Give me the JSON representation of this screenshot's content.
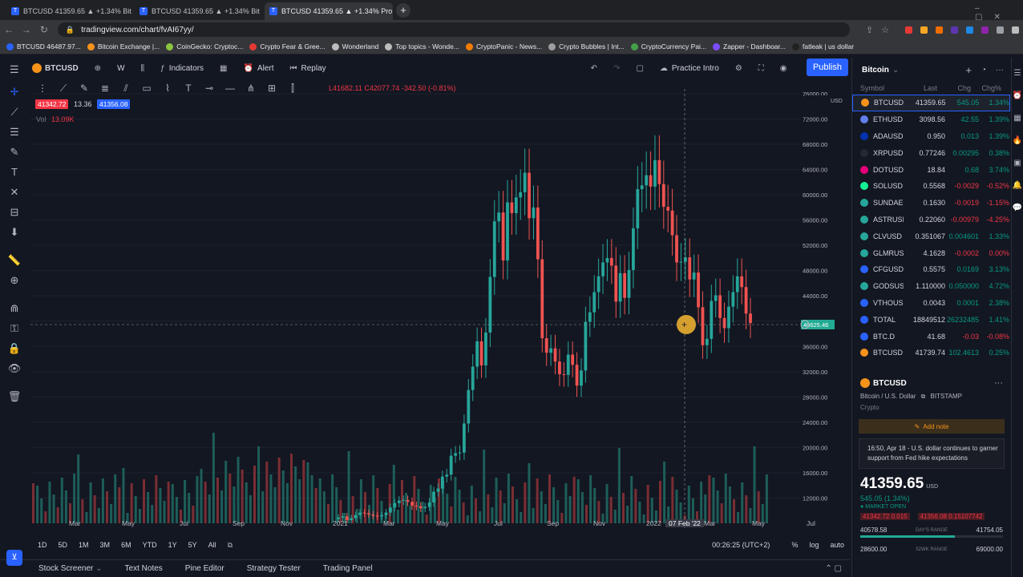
{
  "browser": {
    "tabs": [
      {
        "title": "BTCUSD 41359.65 ▲ +1.34% Bit"
      },
      {
        "title": "BTCUSD 41359.65 ▲ +1.34% Bit"
      },
      {
        "title": "BTCUSD 41359.65 ▲ +1.34% Pro"
      }
    ],
    "url": "tradingview.com/chart/fvAI67yy/",
    "bookmarks": [
      "BTCUSD 46487.97...",
      "Bitcoin Exchange |...",
      "CoinGecko: Cryptoc...",
      "Crypto Fear & Gree...",
      "Wonderland",
      "Top topics - Wonde...",
      "CryptoPanic - News...",
      "Crypto Bubbles | Int...",
      "CryptoCurrency Pai...",
      "Zapper - Dashboar...",
      "fatleak | us dollar"
    ]
  },
  "toolbar": {
    "symbol": "BTCUSD",
    "interval": "W",
    "indicators": "Indicators",
    "alert": "Alert",
    "replay": "Replay",
    "practice": "Practice Intro",
    "publish": "Publish"
  },
  "legend": {
    "ohlc": "L41682.11 C42077.74 -342.50 (-0.81%)",
    "bid": "41342.72",
    "spread": "13.36",
    "ask": "41356.08",
    "vol_label": "Vol",
    "vol_value": "13.09K"
  },
  "chart_data": {
    "type": "candlestick",
    "symbol": "BTCUSD",
    "interval": "W",
    "ylim": [
      8000,
      76000
    ],
    "y_ticks": [
      "76000.00",
      "72000.00",
      "68000.00",
      "64000.00",
      "60000.00",
      "56000.00",
      "52000.00",
      "48000.00",
      "44000.00",
      "40000.00",
      "36000.00",
      "32000.00",
      "28000.00",
      "24000.00",
      "20000.00",
      "16000.00",
      "12000.00"
    ],
    "current_price_label": "40625.46",
    "currency": "USD",
    "x_labels": [
      "Mar",
      "May",
      "Jul",
      "Sep",
      "Nov",
      "2021",
      "Mar",
      "May",
      "Jul",
      "Sep",
      "Nov",
      "2022",
      "07 Feb '22",
      "Mar",
      "May",
      "Jul"
    ],
    "closes": [
      8900,
      9100,
      8500,
      8800,
      9300,
      9700,
      9600,
      9400,
      9200,
      9100,
      9300,
      9700,
      10500,
      11200,
      11600,
      11700,
      11400,
      10800,
      10700,
      10400,
      10600,
      11300,
      13000,
      13500,
      15400,
      15700,
      18700,
      19100,
      19200,
      23800,
      29100,
      32800,
      36800,
      33000,
      38200,
      47000,
      55800,
      57200,
      49600,
      58800,
      57100,
      59600,
      60400,
      63500,
      56300,
      58000,
      49800,
      37300,
      35000,
      35700,
      33600,
      31600,
      31500,
      34700,
      33100,
      29800,
      32200,
      39900,
      41400,
      44600,
      47100,
      49300,
      50000,
      48800,
      43100,
      47600,
      43700,
      48100,
      54700,
      60900,
      61500,
      63100,
      61300,
      65500,
      61700,
      58100,
      57500,
      53600,
      49300,
      49400,
      50100,
      46600,
      47700,
      42200,
      36200,
      37200,
      43200,
      44100,
      40500,
      38900,
      42300,
      44600,
      47100,
      45400,
      41200,
      39700
    ],
    "volume_note": "volume histogram"
  },
  "xaxis": {
    "highlight": "07 Feb '22"
  },
  "timeframes": [
    "1D",
    "5D",
    "1M",
    "3M",
    "6M",
    "YTD",
    "1Y",
    "5Y",
    "All"
  ],
  "clock": "00:26:25 (UTC+2)",
  "scale_opts": [
    "%",
    "log",
    "auto"
  ],
  "bottom_tabs": [
    "Stock Screener",
    "Text Notes",
    "Pine Editor",
    "Strategy Tester",
    "Trading Panel"
  ],
  "watchlist": {
    "title": "Bitcoin",
    "cols": [
      "Symbol",
      "Last",
      "Chg",
      "Chg%"
    ],
    "rows": [
      {
        "sym": "BTCUSD",
        "last": "41359.65",
        "chg": "545.05",
        "chp": "1.34%",
        "dir": "up",
        "color": "#f7931a"
      },
      {
        "sym": "ETHUSD",
        "last": "3098.56",
        "chg": "42.55",
        "chp": "1.39%",
        "dir": "up",
        "color": "#627eea"
      },
      {
        "sym": "ADAUSD",
        "last": "0.950",
        "chg": "0.013",
        "chp": "1.39%",
        "dir": "up",
        "color": "#0033ad"
      },
      {
        "sym": "XRPUSD",
        "last": "0.77246",
        "chg": "0.00295",
        "chp": "0.38%",
        "dir": "up",
        "color": "#23292f"
      },
      {
        "sym": "DOTUSD",
        "last": "18.84",
        "chg": "0.68",
        "chp": "3.74%",
        "dir": "up",
        "color": "#e6007a"
      },
      {
        "sym": "SOLUSD",
        "last": "0.5568",
        "chg": "-0.0029",
        "chp": "-0.52%",
        "dir": "dn",
        "color": "#14f195"
      },
      {
        "sym": "SUNDAE",
        "last": "0.1630",
        "chg": "-0.0019",
        "chp": "-1.15%",
        "dir": "dn",
        "color": "#26a69a"
      },
      {
        "sym": "ASTRUSI",
        "last": "0.22060",
        "chg": "-0.00979",
        "chp": "-4.25%",
        "dir": "dn",
        "color": "#26a69a"
      },
      {
        "sym": "CLVUSD",
        "last": "0.351067",
        "chg": "0.004601",
        "chp": "1.33%",
        "dir": "up",
        "color": "#26a69a"
      },
      {
        "sym": "GLMRUS",
        "last": "4.1628",
        "chg": "-0.0002",
        "chp": "0.00%",
        "dir": "dn",
        "color": "#26a69a"
      },
      {
        "sym": "CFGUSD",
        "last": "0.5575",
        "chg": "0.0169",
        "chp": "3.13%",
        "dir": "up",
        "color": "#2962ff"
      },
      {
        "sym": "GODSUS",
        "last": "1.110000",
        "chg": "0.050000",
        "chp": "4.72%",
        "dir": "up",
        "color": "#26a69a"
      },
      {
        "sym": "VTHOUS",
        "last": "0.0043",
        "chg": "0.0001",
        "chp": "2.38%",
        "dir": "up",
        "color": "#2962ff"
      },
      {
        "sym": "TOTAL",
        "last": "18849512",
        "chg": "26232485",
        "chp": "1.41%",
        "dir": "up",
        "color": "#2962ff"
      },
      {
        "sym": "BTC.D",
        "last": "41.68",
        "chg": "-0.03",
        "chp": "-0.08%",
        "dir": "dn",
        "color": "#2962ff"
      },
      {
        "sym": "BTCUSD",
        "last": "41739.74",
        "chg": "102.4613",
        "chp": "0.25%",
        "dir": "up",
        "color": "#f7931a"
      }
    ]
  },
  "detail": {
    "symbol": "BTCUSD",
    "desc": "Bitcoin / U.S. Dollar",
    "exchange": "BITSTAMP",
    "type": "Crypto",
    "add_note": "Add note",
    "news": "16:50, Apr 18 - U.S. dollar continues to garner support from Fed hike expectations",
    "price": "41359.65",
    "price_ccy": "USD",
    "change": "545.05 (1.34%)",
    "market": "MARKET OPEN",
    "bid_ask": "41342.72 0.015",
    "bid_ask2": "41356.08 0.15107742",
    "day_low": "40578.58",
    "day_label": "DAY'S RANGE",
    "day_high": "41754.05",
    "wk_low": "28600.00",
    "wk_label": "52WK RANGE",
    "wk_high": "69000.00"
  }
}
